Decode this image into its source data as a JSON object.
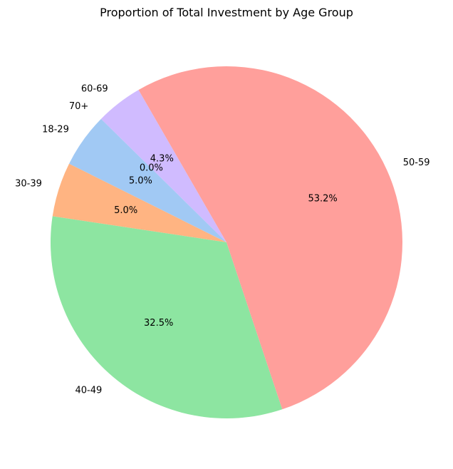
{
  "chart_data": {
    "type": "pie",
    "title": "Proportion of Total Investment by Age Group",
    "start_angle": 120,
    "direction": "counterclockwise",
    "slices": [
      {
        "label": "60-69",
        "value": 4.3,
        "pct_label": "4.3%",
        "color": "#d0bbff"
      },
      {
        "label": "70+",
        "value": 0.0,
        "pct_label": "0.0%",
        "color": "#fffea3"
      },
      {
        "label": "18-29",
        "value": 5.0,
        "pct_label": "5.0%",
        "color": "#a1c9f4"
      },
      {
        "label": "30-39",
        "value": 5.0,
        "pct_label": "5.0%",
        "color": "#ffb482"
      },
      {
        "label": "40-49",
        "value": 32.5,
        "pct_label": "32.5%",
        "color": "#8de5a1"
      },
      {
        "label": "50-59",
        "value": 53.2,
        "pct_label": "53.2%",
        "color": "#ff9f9b"
      }
    ]
  }
}
